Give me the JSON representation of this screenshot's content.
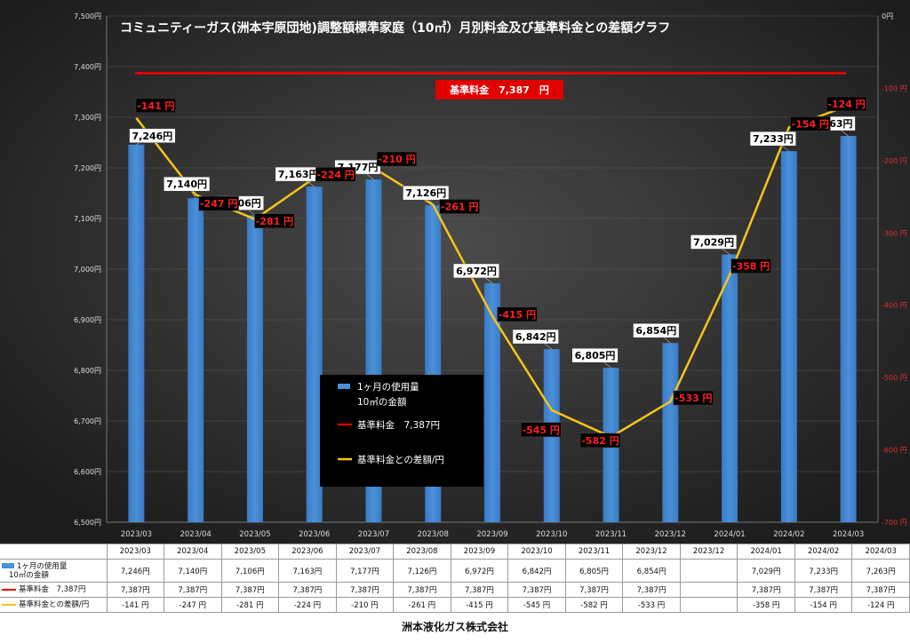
{
  "footer": "洲本液化ガス株式会社",
  "chart_data": {
    "type": "bar",
    "title": "コミュニティーガス(洲本宇原団地)調整額標準家庭（10㎥）月別料金及び基準料金との差額グラフ",
    "categories": [
      "2023/03",
      "2023/04",
      "2023/05",
      "2023/06",
      "2023/07",
      "2023/08",
      "2023/09",
      "2023/10",
      "2023/11",
      "2023/12",
      "2024/01",
      "2024/02",
      "2024/03"
    ],
    "table_headers": [
      "2023/03",
      "2023/04",
      "2023/05",
      "2023/06",
      "2023/07",
      "2023/08",
      "2023/09",
      "2023/10",
      "2023/11",
      "2023/12",
      "2023/12",
      "2024/01",
      "2024/02",
      "2024/03"
    ],
    "ylim_left": [
      6500,
      7500
    ],
    "ylim_right": [
      -700,
      0
    ],
    "left_ticks": [
      "6,500円",
      "6,600円",
      "6,700円",
      "6,800円",
      "6,900円",
      "7,000円",
      "7,100円",
      "7,200円",
      "7,300円",
      "7,400円",
      "7,500円"
    ],
    "right_ticks": [
      "-700 円",
      "-600 円",
      "-500 円",
      "-400 円",
      "-300 円",
      "-200 円",
      "-100 円",
      "0円"
    ],
    "grid": true,
    "colors": {
      "bar": "#4a90d9",
      "base": "#e00000",
      "diff": "#f5c518",
      "background": "#1c1c1c"
    },
    "series": [
      {
        "name": "1ヶ月の使用量10㎥の金額",
        "legend_line1": "1ヶ月の使用量",
        "legend_line2": "10㎥の金額",
        "axis": "left",
        "values": [
          7246,
          7140,
          7106,
          7163,
          7177,
          7126,
          6972,
          6842,
          6805,
          6854,
          7029,
          7233,
          7263
        ],
        "labels": [
          "7,246円",
          "7,140円",
          "7,106円",
          "7,163円",
          "7,177円",
          "7,126円",
          "6,972円",
          "6,842円",
          "6,805円",
          "6,854円",
          "7,029円",
          "7,233円",
          "7,263円"
        ],
        "table_values": [
          "7,246円",
          "7,140円",
          "7,106円",
          "7,163円",
          "7,177円",
          "7,126円",
          "6,972円",
          "6,842円",
          "6,805円",
          "6,854円",
          "",
          "7,029円",
          "7,233円",
          "7,263円"
        ]
      },
      {
        "name": "基準料金 7,387円",
        "legend": "基準料金　7,387円",
        "table_name": "基準料金　7,387円",
        "axis": "left",
        "value": 7387,
        "annotation": "基準料金　7,387　円",
        "table_values": [
          "7,387円",
          "7,387円",
          "7,387円",
          "7,387円",
          "7,387円",
          "7,387円",
          "7,387円",
          "7,387円",
          "7,387円",
          "7,387円",
          "",
          "7,387円",
          "7,387円",
          "7,387円"
        ]
      },
      {
        "name": "基準料金との差額/円",
        "legend": "基準料金との差額/円",
        "axis": "right",
        "values": [
          -141,
          -247,
          -281,
          -224,
          -210,
          -261,
          -415,
          -545,
          -582,
          -533,
          -358,
          -154,
          -124
        ],
        "labels": [
          "-141 円",
          "-247 円",
          "-281 円",
          "-224 円",
          "-210 円",
          "-261 円",
          "-415 円",
          "-545 円",
          "-582 円",
          "-533 円",
          "-358 円",
          "-154 円",
          "-124 円"
        ],
        "table_values": [
          "-141 円",
          "-247 円",
          "-281 円",
          "-224 円",
          "-210 円",
          "-261 円",
          "-415 円",
          "-545 円",
          "-582 円",
          "-533 円",
          "",
          "-358 円",
          "-154 円",
          "-124 円"
        ]
      }
    ]
  }
}
